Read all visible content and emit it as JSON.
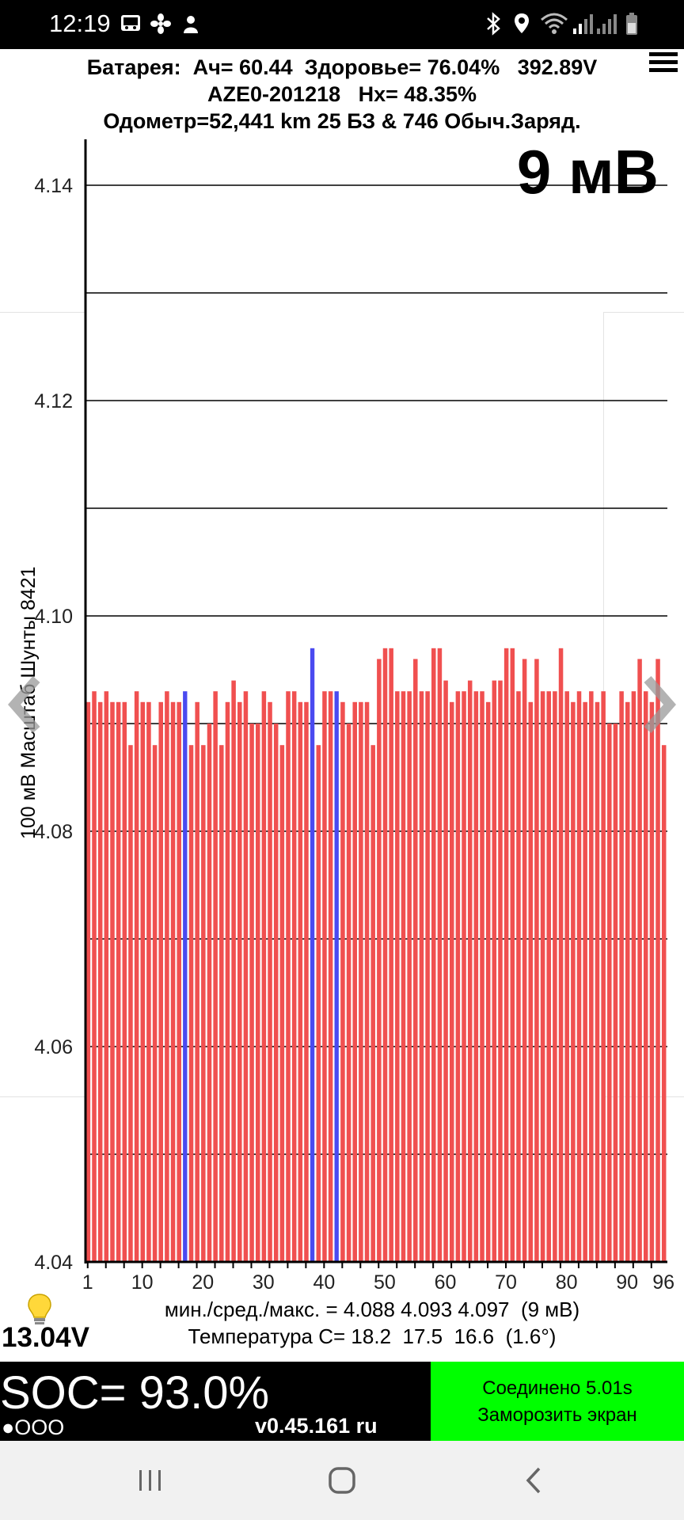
{
  "status_bar": {
    "time": "12:19",
    "left_icons": [
      "gallery-icon",
      "fan-icon",
      "cat-icon"
    ],
    "right_icons": [
      "bluetooth-icon",
      "location-icon",
      "wifi-icon",
      "signal-icon",
      "signal-2-icon",
      "battery-icon"
    ]
  },
  "header": {
    "line1": "Батарея:  Ач= 60.44  Здоровье= 76.04%   392.89V",
    "line2": "AZE0-201218   Hx= 48.35%",
    "line3": "Одометр=52,441 km 25 БЗ & 746 Обыч.Заряд."
  },
  "chart": {
    "spread_label": "9 мВ",
    "y_axis_label": "100 мВ Масштаб  Шунты 8421"
  },
  "chart_data": {
    "type": "bar",
    "title": "",
    "xlabel": "",
    "ylabel": "100 мВ Масштаб  Шунты 8421",
    "ylim": [
      4.04,
      4.145
    ],
    "y_ticks": [
      4.14,
      4.12,
      4.1,
      4.08,
      4.06,
      4.04
    ],
    "x_tick_labels": [
      "1",
      "10",
      "20",
      "30",
      "40",
      "50",
      "60",
      "70",
      "80",
      "90",
      "96"
    ],
    "grid": true,
    "bar_color": "#f05050",
    "shunt_color": "#4a4af0",
    "shunt_cells": [
      17,
      38,
      42
    ],
    "x": [
      1,
      2,
      3,
      4,
      5,
      6,
      7,
      8,
      9,
      10,
      11,
      12,
      13,
      14,
      15,
      16,
      17,
      18,
      19,
      20,
      21,
      22,
      23,
      24,
      25,
      26,
      27,
      28,
      29,
      30,
      31,
      32,
      33,
      34,
      35,
      36,
      37,
      38,
      39,
      40,
      41,
      42,
      43,
      44,
      45,
      46,
      47,
      48,
      49,
      50,
      51,
      52,
      53,
      54,
      55,
      56,
      57,
      58,
      59,
      60,
      61,
      62,
      63,
      64,
      65,
      66,
      67,
      68,
      69,
      70,
      71,
      72,
      73,
      74,
      75,
      76,
      77,
      78,
      79,
      80,
      81,
      82,
      83,
      84,
      85,
      86,
      87,
      88,
      89,
      90,
      91,
      92,
      93,
      94,
      95,
      96
    ],
    "values": [
      4.092,
      4.093,
      4.092,
      4.093,
      4.092,
      4.092,
      4.092,
      4.088,
      4.093,
      4.092,
      4.092,
      4.088,
      4.092,
      4.093,
      4.092,
      4.092,
      4.093,
      4.088,
      4.092,
      4.088,
      4.09,
      4.093,
      4.088,
      4.092,
      4.094,
      4.092,
      4.093,
      4.09,
      4.09,
      4.093,
      4.092,
      4.09,
      4.088,
      4.093,
      4.093,
      4.092,
      4.092,
      4.097,
      4.088,
      4.093,
      4.093,
      4.093,
      4.092,
      4.09,
      4.092,
      4.092,
      4.092,
      4.088,
      4.096,
      4.097,
      4.097,
      4.093,
      4.093,
      4.093,
      4.096,
      4.093,
      4.093,
      4.097,
      4.097,
      4.094,
      4.092,
      4.093,
      4.093,
      4.094,
      4.093,
      4.093,
      4.092,
      4.094,
      4.094,
      4.097,
      4.097,
      4.093,
      4.096,
      4.092,
      4.096,
      4.093,
      4.093,
      4.093,
      4.097,
      4.093,
      4.092,
      4.093,
      4.092,
      4.093,
      4.092,
      4.093,
      4.09,
      4.09,
      4.093,
      4.092,
      4.093,
      4.096,
      4.093,
      4.092,
      4.096,
      4.088
    ]
  },
  "stats": {
    "line1": "мин./сред./макс. = 4.088 4.093 4.097  (9 мВ)",
    "line2": "Температура С= 18.2  17.5  16.6  (1.6°)"
  },
  "aux_voltage": "13.04V",
  "footer": {
    "soc": "SOC= 93.0%",
    "dots": "●OOO",
    "version": "v0.45.161 ru",
    "connected": "Соединено 5.01s",
    "freeze": "Заморозить экран",
    "colors": {
      "left_bg": "#000000",
      "right_bg": "#00ff00"
    }
  },
  "nav_bar": {
    "icons": [
      "recent-apps-icon",
      "home-icon",
      "back-icon"
    ]
  }
}
